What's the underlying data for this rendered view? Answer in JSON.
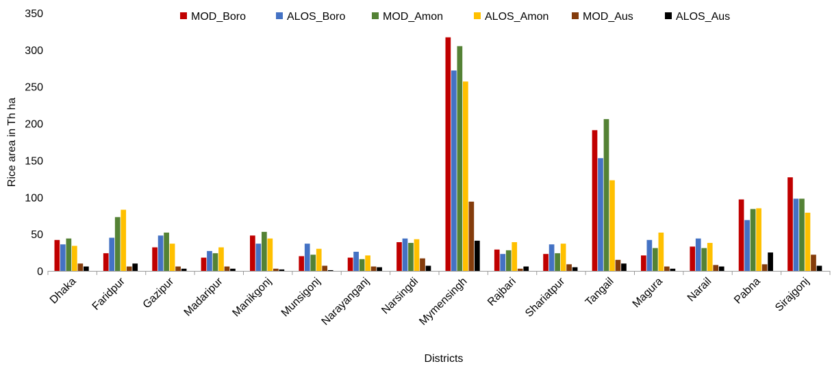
{
  "chart_data": {
    "type": "bar",
    "xlabel": "Districts",
    "ylabel": "Rice area in Th ha",
    "ylim": [
      0,
      350
    ],
    "yticks": [
      0,
      50,
      100,
      150,
      200,
      250,
      300,
      350
    ],
    "grid": false,
    "legend_position": "top",
    "categories": [
      "Dhaka",
      "Faridpur",
      "Gazipur",
      "Madaripur",
      "Manikgonj",
      "Munsigonj",
      "Narayanganj",
      "Narsingdi",
      "Mymensingh",
      "Rajbari",
      "Shariatpur",
      "Tangail",
      "Magura",
      "Narail",
      "Pabna",
      "Sirajgonj"
    ],
    "series": [
      {
        "name": "MOD_Boro",
        "color": "#C00000",
        "values": [
          42,
          24,
          32,
          18,
          48,
          20,
          18,
          39,
          317,
          29,
          23,
          191,
          21,
          33,
          97,
          127
        ]
      },
      {
        "name": "ALOS_Boro",
        "color": "#4472C4",
        "values": [
          36,
          45,
          48,
          27,
          37,
          37,
          26,
          44,
          272,
          23,
          36,
          153,
          42,
          44,
          69,
          98
        ]
      },
      {
        "name": "MOD_Amon",
        "color": "#548235",
        "values": [
          44,
          73,
          52,
          24,
          53,
          22,
          16,
          38,
          305,
          28,
          24,
          206,
          31,
          31,
          84,
          98
        ]
      },
      {
        "name": "ALOS_Amon",
        "color": "#FFC000",
        "values": [
          34,
          83,
          37,
          32,
          44,
          30,
          21,
          43,
          257,
          39,
          37,
          123,
          52,
          38,
          85,
          79
        ]
      },
      {
        "name": "MOD_Aus",
        "color": "#843C0C",
        "values": [
          10,
          6,
          6,
          6,
          3,
          7,
          6,
          17,
          94,
          3,
          9,
          15,
          6,
          8,
          9,
          22
        ]
      },
      {
        "name": "ALOS_Aus",
        "color": "#000000",
        "values": [
          6,
          10,
          3,
          3,
          2,
          1,
          5,
          7,
          41,
          6,
          5,
          10,
          3,
          6,
          25,
          7
        ]
      }
    ]
  }
}
